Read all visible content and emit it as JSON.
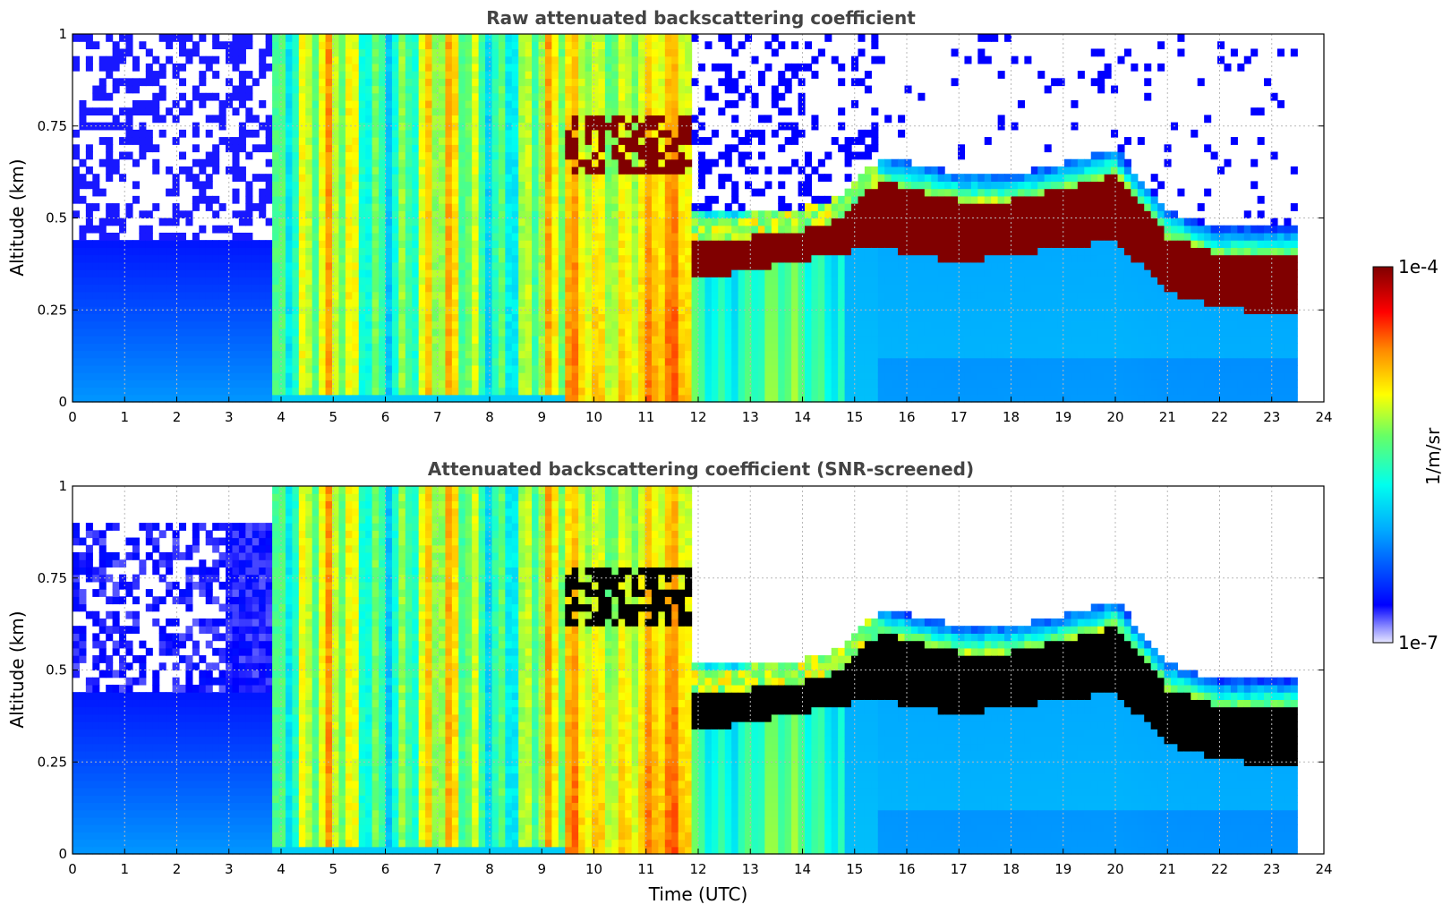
{
  "chart_data": [
    {
      "type": "heatmap",
      "title": "Raw attenuated backscattering coefficient",
      "xlabel": "",
      "ylabel": "Altitude (km)",
      "xlim": [
        0,
        24
      ],
      "ylim": [
        0,
        1
      ],
      "xticks": [
        "0",
        "1",
        "2",
        "3",
        "4",
        "5",
        "6",
        "7",
        "8",
        "9",
        "10",
        "11",
        "12",
        "13",
        "14",
        "15",
        "16",
        "17",
        "18",
        "19",
        "20",
        "21",
        "22",
        "23",
        "24"
      ],
      "yticks": [
        "0",
        "0.25",
        "0.5",
        "0.75",
        "1"
      ],
      "grid": true,
      "data_end_time": 23.5,
      "cloud_layer": {
        "description_times": [
          11.8,
          13,
          14.5,
          15.5,
          17,
          18,
          19,
          20,
          21,
          22,
          23.5
        ],
        "base_km": [
          0.33,
          0.36,
          0.4,
          0.42,
          0.38,
          0.4,
          0.42,
          0.44,
          0.3,
          0.26,
          0.23
        ],
        "top_km": [
          0.45,
          0.45,
          0.48,
          0.6,
          0.55,
          0.55,
          0.58,
          0.62,
          0.45,
          0.4,
          0.4
        ]
      }
    },
    {
      "type": "heatmap",
      "title": "Attenuated backscattering coefficient (SNR-screened)",
      "xlabel": "Time (UTC)",
      "ylabel": "Altitude (km)",
      "xlim": [
        0,
        24
      ],
      "ylim": [
        0,
        1
      ],
      "xticks": [
        "0",
        "1",
        "2",
        "3",
        "4",
        "5",
        "6",
        "7",
        "8",
        "9",
        "10",
        "11",
        "12",
        "13",
        "14",
        "15",
        "16",
        "17",
        "18",
        "19",
        "20",
        "21",
        "22",
        "23",
        "24"
      ],
      "yticks": [
        "0",
        "0.25",
        "0.5",
        "0.75",
        "1"
      ],
      "grid": true,
      "data_end_time": 23.5,
      "saturated_color": "#000000"
    }
  ],
  "colorbar": {
    "label": "1/m/sr",
    "max_label": "1e-4",
    "min_label": "1e-7",
    "scale": "log",
    "range": [
      1e-07,
      0.0001
    ],
    "colormap": "jet"
  }
}
